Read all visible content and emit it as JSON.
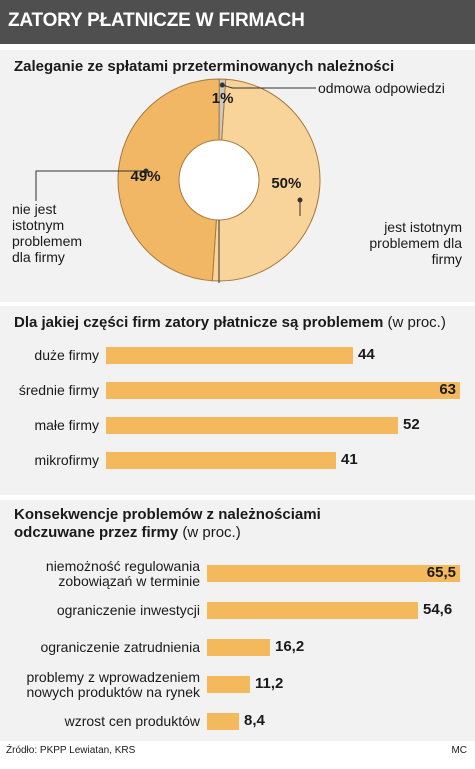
{
  "header": {
    "title": "ZATORY PŁATNICZE W FIRMACH"
  },
  "footer": {
    "source": "Źródło: PKPP Lewiatan, KRS",
    "author": "MC"
  },
  "colors": {
    "bar": "#f4b95c",
    "slice_dark": "#f2b765",
    "slice_light": "#f8d39a",
    "header_bg": "#4f4f4f",
    "panel_bg": "#f2f2f2"
  },
  "chart_data": [
    {
      "type": "pie",
      "title": "Zaleganie ze spłatami przeterminowanych należności",
      "donut": true,
      "slices": [
        {
          "label": "jest istotnym problemem dla firmy",
          "value": 50,
          "value_label": "50%"
        },
        {
          "label": "nie jest istotnym problemem dla firmy",
          "value": 49,
          "value_label": "49%"
        },
        {
          "label": "odmowa odpowiedzi",
          "value": 1,
          "value_label": "1%"
        }
      ]
    },
    {
      "type": "bar",
      "orientation": "horizontal",
      "title": "Dla jakiej części firm zatory płatnicze są problemem",
      "unit": "(w proc.)",
      "categories": [
        "duże firmy",
        "średnie firmy",
        "małe firmy",
        "mikrofirmy"
      ],
      "values": [
        44,
        63,
        52,
        41
      ],
      "value_labels": [
        "44",
        "63",
        "52",
        "41"
      ]
    },
    {
      "type": "bar",
      "orientation": "horizontal",
      "title_lines": [
        "Konsekwencje problemów z należnościami",
        "odczuwane przez firmy"
      ],
      "unit": "(w proc.)",
      "categories": [
        [
          "niemożność regulowania",
          "zobowiązań w terminie"
        ],
        [
          "ograniczenie inwestycji"
        ],
        [
          "ograniczenie zatrudnienia"
        ],
        [
          "problemy z wprowadzeniem",
          "nowych produktów na rynek"
        ],
        [
          "wzrost cen produktów"
        ]
      ],
      "values": [
        65.5,
        54.6,
        16.2,
        11.2,
        8.4
      ],
      "value_labels": [
        "65,5",
        "54,6",
        "16,2",
        "11,2",
        "8,4"
      ]
    }
  ]
}
